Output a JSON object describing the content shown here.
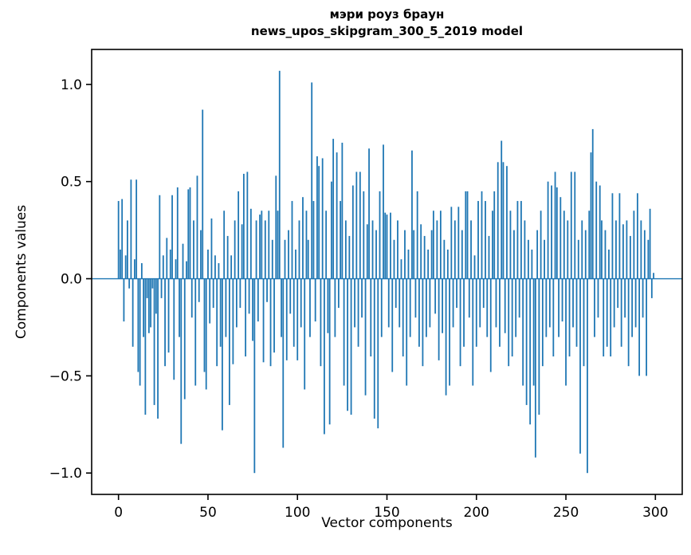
{
  "figure": {
    "title_line1": "мэри роуз браун",
    "title_line2": "news_upos_skipgram_300_5_2019 model",
    "xlabel": "Vector components",
    "ylabel": "Components values",
    "bar_color": "#1f77b4",
    "axis_color": "#000000",
    "background": "#ffffff"
  },
  "chart_data": {
    "type": "bar",
    "title": "мэри роуз браун\nnews_upos_skipgram_300_5_2019 model",
    "xlabel": "Vector components",
    "ylabel": "Components values",
    "legend": null,
    "grid": false,
    "n_components": 300,
    "xlim": [
      -15,
      315
    ],
    "ylim": [
      -1.11,
      1.18
    ],
    "xticks": [
      0,
      50,
      100,
      150,
      200,
      250,
      300
    ],
    "yticks": [
      -1.0,
      -0.5,
      0.0,
      0.5,
      1.0
    ],
    "x_start": 0,
    "values": [
      0.4,
      0.15,
      0.41,
      -0.22,
      0.12,
      0.3,
      -0.05,
      0.51,
      -0.35,
      0.1,
      0.51,
      -0.48,
      -0.55,
      0.08,
      -0.3,
      -0.7,
      -0.1,
      -0.28,
      -0.25,
      -0.05,
      -0.65,
      -0.18,
      -0.72,
      0.43,
      -0.1,
      0.12,
      -0.45,
      0.21,
      -0.38,
      0.15,
      0.43,
      -0.52,
      0.1,
      0.47,
      -0.3,
      -0.85,
      0.18,
      -0.62,
      0.09,
      0.46,
      0.47,
      -0.2,
      0.3,
      -0.55,
      0.53,
      -0.12,
      0.25,
      0.87,
      -0.48,
      -0.57,
      0.15,
      -0.23,
      0.31,
      -0.15,
      0.12,
      -0.45,
      0.08,
      -0.35,
      -0.78,
      0.35,
      -0.3,
      0.22,
      -0.65,
      0.12,
      -0.44,
      0.3,
      -0.25,
      0.45,
      -0.15,
      0.28,
      0.54,
      -0.4,
      0.55,
      -0.18,
      0.36,
      -0.32,
      -1.0,
      0.3,
      -0.22,
      0.33,
      0.35,
      -0.43,
      0.3,
      -0.12,
      0.35,
      -0.45,
      0.2,
      -0.38,
      0.53,
      0.35,
      1.07,
      -0.3,
      -0.87,
      0.2,
      -0.42,
      0.25,
      -0.18,
      0.4,
      -0.35,
      0.15,
      -0.42,
      0.3,
      -0.25,
      0.42,
      -0.57,
      0.35,
      0.2,
      -0.3,
      1.01,
      0.4,
      -0.22,
      0.63,
      0.58,
      -0.45,
      0.62,
      -0.8,
      0.35,
      -0.28,
      -0.75,
      0.5,
      0.72,
      -0.3,
      0.65,
      -0.15,
      0.4,
      0.7,
      -0.55,
      0.3,
      -0.68,
      0.22,
      -0.7,
      0.48,
      -0.25,
      0.55,
      -0.35,
      0.55,
      -0.2,
      0.45,
      -0.6,
      0.28,
      0.67,
      -0.4,
      0.3,
      -0.72,
      0.25,
      -0.77,
      0.45,
      -0.3,
      0.69,
      0.34,
      0.33,
      -0.25,
      0.34,
      -0.48,
      0.2,
      -0.15,
      0.3,
      -0.25,
      0.1,
      -0.4,
      0.25,
      -0.55,
      0.15,
      -0.3,
      0.66,
      0.25,
      -0.2,
      0.45,
      -0.35,
      0.28,
      -0.45,
      0.22,
      -0.3,
      0.15,
      -0.25,
      0.25,
      0.35,
      -0.18,
      0.3,
      -0.42,
      0.35,
      -0.28,
      0.2,
      -0.6,
      0.15,
      -0.55,
      0.37,
      -0.25,
      0.3,
      -0.15,
      0.37,
      -0.45,
      0.25,
      -0.35,
      0.45,
      0.45,
      -0.2,
      0.3,
      -0.55,
      0.12,
      -0.35,
      0.4,
      -0.25,
      0.45,
      -0.15,
      0.4,
      -0.3,
      0.22,
      -0.48,
      0.35,
      0.45,
      -0.25,
      0.6,
      -0.35,
      0.71,
      0.6,
      -0.28,
      0.58,
      -0.45,
      0.35,
      -0.4,
      0.25,
      -0.3,
      0.4,
      -0.2,
      0.4,
      -0.55,
      0.3,
      -0.65,
      0.2,
      -0.75,
      0.15,
      -0.55,
      -0.92,
      0.25,
      -0.7,
      0.35,
      -0.45,
      0.2,
      -0.3,
      0.5,
      -0.25,
      0.48,
      -0.4,
      0.55,
      0.47,
      -0.3,
      0.42,
      -0.22,
      0.35,
      -0.55,
      0.3,
      -0.4,
      0.55,
      -0.25,
      0.55,
      -0.35,
      0.2,
      -0.9,
      0.3,
      -0.45,
      0.25,
      -1.0,
      0.35,
      0.65,
      0.77,
      -0.3,
      0.5,
      -0.2,
      0.48,
      0.3,
      -0.4,
      0.25,
      -0.35,
      0.15,
      -0.4,
      0.44,
      -0.25,
      0.3,
      -0.15,
      0.44,
      -0.35,
      0.28,
      -0.2,
      0.3,
      -0.45,
      0.22,
      -0.3,
      0.35,
      -0.25,
      0.44,
      -0.5,
      0.3,
      -0.2,
      0.25,
      -0.5,
      0.2,
      0.36,
      -0.1,
      0.03
    ]
  }
}
